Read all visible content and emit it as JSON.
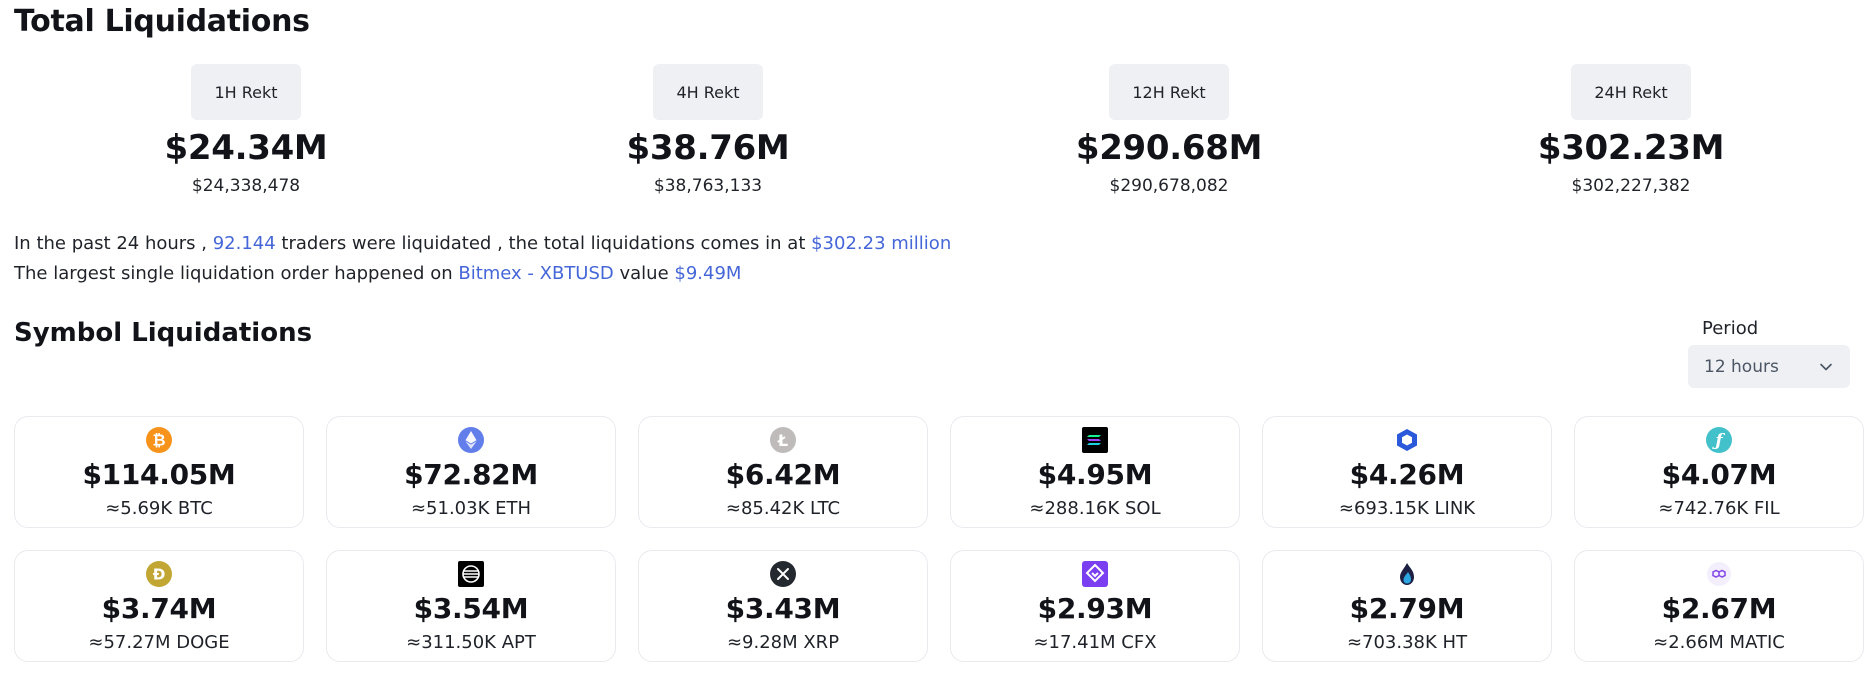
{
  "total": {
    "title": "Total Liquidations",
    "periods": [
      {
        "label": "1H Rekt",
        "short": "$24.34M",
        "full": "$24,338,478"
      },
      {
        "label": "4H Rekt",
        "short": "$38.76M",
        "full": "$38,763,133"
      },
      {
        "label": "12H Rekt",
        "short": "$290.68M",
        "full": "$290,678,082"
      },
      {
        "label": "24H Rekt",
        "short": "$302.23M",
        "full": "$302,227,382"
      }
    ]
  },
  "summary": {
    "line1_prefix": "In the past 24 hours , ",
    "traders": "92.144",
    "line1_mid": " traders were liquidated , the total liquidations comes in at ",
    "total": "$302.23 million",
    "line2_prefix": "The largest single liquidation order happened on ",
    "exchange_pair": "Bitmex - XBTUSD",
    "line2_mid": " value ",
    "largest_value": "$9.49M"
  },
  "symbols": {
    "title": "Symbol Liquidations",
    "period_label": "Period",
    "period_value": "12 hours",
    "cards": [
      {
        "icon": "btc-icon",
        "color": "#f7931a",
        "value": "$114.05M",
        "amount": "≈5.69K BTC"
      },
      {
        "icon": "eth-icon",
        "color": "#627eea",
        "value": "$72.82M",
        "amount": "≈51.03K ETH"
      },
      {
        "icon": "ltc-icon",
        "color": "#bfbbbb",
        "value": "$6.42M",
        "amount": "≈85.42K LTC"
      },
      {
        "icon": "sol-icon",
        "color": "#000000",
        "value": "$4.95M",
        "amount": "≈288.16K SOL"
      },
      {
        "icon": "link-icon",
        "color": "#2a5ada",
        "value": "$4.26M",
        "amount": "≈693.15K LINK"
      },
      {
        "icon": "fil-icon",
        "color": "#42c1ca",
        "value": "$4.07M",
        "amount": "≈742.76K FIL"
      },
      {
        "icon": "doge-icon",
        "color": "#c2a633",
        "value": "$3.74M",
        "amount": "≈57.27M DOGE"
      },
      {
        "icon": "apt-icon",
        "color": "#000000",
        "value": "$3.54M",
        "amount": "≈311.50K APT"
      },
      {
        "icon": "xrp-icon",
        "color": "#23292f",
        "value": "$3.43M",
        "amount": "≈9.28M XRP"
      },
      {
        "icon": "cfx-icon",
        "color": "#7b3ff2",
        "value": "$2.93M",
        "amount": "≈17.41M CFX"
      },
      {
        "icon": "ht-icon",
        "color": "#1c2143",
        "value": "$2.79M",
        "amount": "≈703.38K HT"
      },
      {
        "icon": "matic-icon",
        "color": "#8247e5",
        "value": "$2.67M",
        "amount": "≈2.66M MATIC"
      }
    ]
  }
}
